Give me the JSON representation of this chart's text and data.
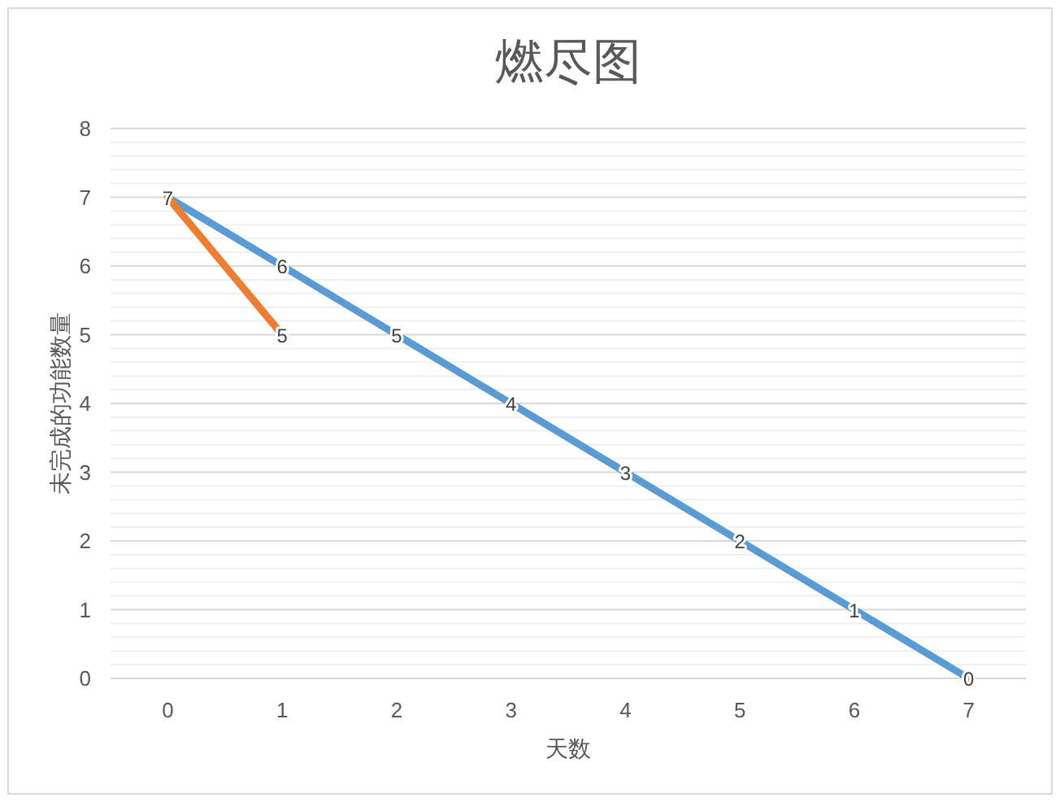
{
  "chart_data": {
    "type": "line",
    "title": "燃尽图",
    "xlabel": "天数",
    "ylabel": "未完成的功能数量",
    "categories": [
      "0",
      "1",
      "2",
      "3",
      "4",
      "5",
      "6",
      "7"
    ],
    "series": [
      {
        "color": "#5b9bd5",
        "values": [
          7,
          6,
          5,
          4,
          3,
          2,
          1,
          0
        ],
        "data_labels": true
      },
      {
        "color": "#ed7d31",
        "values": [
          7,
          5,
          null,
          null,
          null,
          null,
          null,
          null
        ],
        "value_labels": [
          null,
          "5",
          null,
          null,
          null,
          null,
          null,
          null
        ]
      }
    ],
    "ylim": [
      0,
      8
    ],
    "yticks": [
      0,
      {
        "value": 0.2,
        "label": null
      },
      {
        "value": 0.4,
        "label": null
      },
      {
        "value": 0.6,
        "label": null
      },
      {
        "value": 0.8,
        "label": null
      },
      1,
      {
        "value": 1.2,
        "label": null
      },
      {
        "value": 1.4,
        "label": null
      },
      {
        "value": 1.6,
        "label": null
      },
      {
        "value": 1.8,
        "label": null
      },
      2,
      {
        "value": 2.2,
        "label": null
      },
      {
        "value": 2.4,
        "label": null
      },
      {
        "value": 2.6,
        "label": null
      },
      {
        "value": 2.8,
        "label": null
      },
      3,
      {
        "value": 3.2,
        "label": null
      },
      {
        "value": 3.4,
        "label": null
      },
      {
        "value": 3.6,
        "label": null
      },
      {
        "value": 3.8,
        "label": null
      },
      4,
      {
        "value": 4.2,
        "label": null
      },
      {
        "value": 4.4,
        "label": null
      },
      {
        "value": 4.6,
        "label": null
      },
      {
        "value": 4.8,
        "label": null
      },
      5,
      {
        "value": 5.2,
        "label": null
      },
      {
        "value": 5.4,
        "label": null
      },
      {
        "value": 5.6,
        "label": null
      },
      {
        "value": 5.8,
        "label": null
      },
      6,
      {
        "value": 6.2,
        "label": null
      },
      {
        "value": 6.4,
        "label": null
      },
      {
        "value": 6.6,
        "label": null
      },
      {
        "value": 6.8,
        "label": null
      },
      7,
      {
        "value": 7.2,
        "label": null
      },
      {
        "value": 7.4,
        "label": null
      },
      {
        "value": 7.6,
        "label": null
      },
      {
        "value": 7.8,
        "label": null
      },
      8
    ],
    "grid": "y",
    "marker": "none",
    "line_style": "solid"
  }
}
